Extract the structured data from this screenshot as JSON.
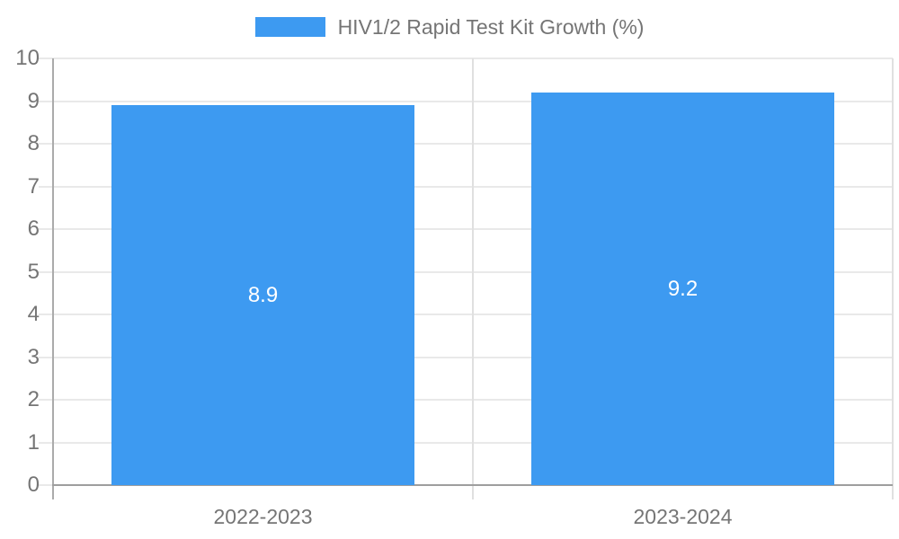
{
  "chart_data": {
    "type": "bar",
    "title": "HIV1/2 Rapid Test Kit Growth (%)",
    "legend_entries": [
      "HIV1/2 Rapid Test Kit Growth (%)"
    ],
    "legend_position": "top-center",
    "categories": [
      "2022-2023",
      "2023-2024"
    ],
    "values": [
      8.9,
      9.2
    ],
    "value_labels": [
      "8.9",
      "9.2"
    ],
    "xlabel": "",
    "ylabel": "",
    "ylim": [
      0,
      10
    ],
    "yticks": [
      0,
      1,
      2,
      3,
      4,
      5,
      6,
      7,
      8,
      9,
      10
    ],
    "grid": true
  },
  "colors": {
    "bar": "#3D9AF1",
    "grid": "#E9E9E9",
    "category_boundary": "#E0E0E0",
    "y_axis_line": "#ABABAB",
    "x_axis_line": "#9E9E9E",
    "tick_text": "#757575",
    "title_text": "#757575",
    "value_label_text": "#FFFFFF",
    "background": "#FFFFFF"
  }
}
